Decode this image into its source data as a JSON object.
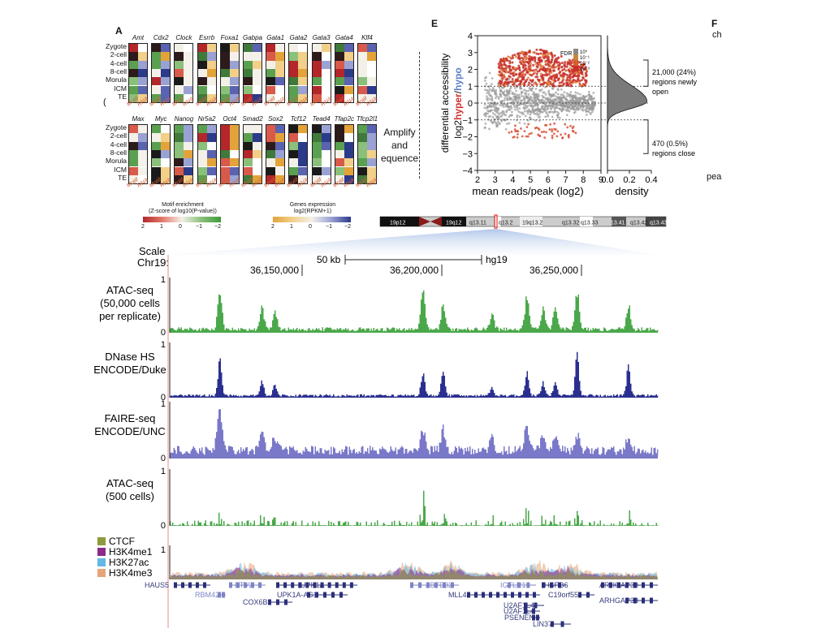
{
  "panel_a": {
    "letter": "A",
    "genes_row1": [
      "Amt",
      "Cdx2",
      "Clock",
      "Esrrb",
      "Foxa1",
      "Gabpa",
      "Gata1",
      "Gata2",
      "Gata3",
      "Gata4",
      "Klf4"
    ],
    "genes_row2": [
      "Max",
      "Myc",
      "Nanog",
      "Nr5a2",
      "Oct4",
      "Smad2",
      "Sox2",
      "Tcf12",
      "Tead4",
      "Tfap2c",
      "Tfcp2l1"
    ],
    "stages": [
      "Zygote",
      "2-cell",
      "4-cell",
      "8-cell",
      "Morula",
      "ICM",
      "TE"
    ],
    "col_motif": "Motif",
    "col_rna": "RNA",
    "legend_motif_title": "Motif enrichment",
    "legend_motif_sub": "(Z-score of log10(P-value))",
    "legend_motif_ticks": [
      "2",
      "1",
      "0",
      "−1",
      "−2"
    ],
    "legend_expr_title": "Genes expression",
    "legend_expr_sub": "log2(RPKM+1)",
    "legend_expr_ticks": [
      "2",
      "1",
      "0",
      "−1",
      "−2"
    ],
    "side_mark": "(",
    "amplify_text": [
      "Amplify",
      "and",
      "equence"
    ]
  },
  "panel_e": {
    "letter": "E",
    "ylabel_1": "differential accessibility",
    "ylabel_2": "log",
    "ylabel_3": "hyper",
    "ylabel_4": "/",
    "ylabel_5": "hypo",
    "xlabel": "mean reads/peak (log",
    "xlabel_end": ")",
    "xlabel_sub": "2",
    "ylabel_sub": "2",
    "xticks": [
      "2",
      "3",
      "4",
      "5",
      "6",
      "7",
      "8",
      "9"
    ],
    "yticks": [
      "4",
      "3",
      "2",
      "1",
      "0",
      "−1",
      "−2",
      "−3",
      "−4"
    ],
    "fdr_label": "FDR",
    "fdr_ticks": [
      "10⁰",
      "10⁻¹",
      "10⁻²",
      "10⁻³"
    ],
    "density_label": "density",
    "density_ticks": [
      "0.0",
      "0.2",
      "0.4"
    ],
    "annot_open": [
      "21,000 (24%)",
      "regions newly",
      "open"
    ],
    "annot_close": [
      "470 (0.5%)",
      "regions close"
    ],
    "hyper_color": "#d0312d",
    "hypo_color": "#5b7fc7"
  },
  "panel_f": {
    "letter": "F",
    "frag_top": "ch",
    "frag_bottom": "pea"
  },
  "ideogram": {
    "bands": [
      "19p12",
      "19q12",
      "q13.11",
      "q13.2",
      "19q13.2",
      "q13.32",
      "q13.33",
      "13.41",
      "q13.42",
      "q13.43"
    ]
  },
  "browser": {
    "scale_label": "Scale",
    "chr_label": "Chr19:",
    "scale_bar": "50 kb",
    "assembly": "hg19",
    "coords": [
      "36,150,000",
      "36,200,000",
      "36,250,000"
    ],
    "tracks": [
      {
        "name_lines": [
          "ATAC-seq",
          "(50,000 cells",
          "per replicate)"
        ],
        "color": "#4aa84a",
        "ymax": "1",
        "ymin": "0"
      },
      {
        "name_lines": [
          "DNase HS",
          "ENCODE/Duke"
        ],
        "color": "#2a2f8f",
        "ymax": "1",
        "ymin": "0"
      },
      {
        "name_lines": [
          "FAIRE-seq",
          "ENCODE/UNC"
        ],
        "color": "#7a78c8",
        "ymax": "1",
        "ymin": "0"
      },
      {
        "name_lines": [
          "ATAC-seq",
          "(500 cells)"
        ],
        "color": "#4aa84a",
        "ymax": "1",
        "ymin": "0"
      }
    ],
    "histone_legend": [
      {
        "label": "CTCF",
        "color": "#8f9a3c"
      },
      {
        "label": "H3K4me1",
        "color": "#8a2a8a"
      },
      {
        "label": "H3K27ac",
        "color": "#62b8e6"
      },
      {
        "label": "H3K4me3",
        "color": "#e6a47a"
      }
    ],
    "histone_ymax": "1",
    "genes": [
      "HAUS5",
      "ETV2",
      "UPK1A",
      "ZBTB32",
      "IGFLR1",
      "HSPB6",
      "ARHGAP33",
      "RBM42",
      "UPK1A-AS1",
      "MLL4",
      "C19orf55",
      "ARHGAP33",
      "COX6B1",
      "U2AF1L4",
      "U2AF1L4",
      "PSENEN",
      "LIN37"
    ]
  }
}
